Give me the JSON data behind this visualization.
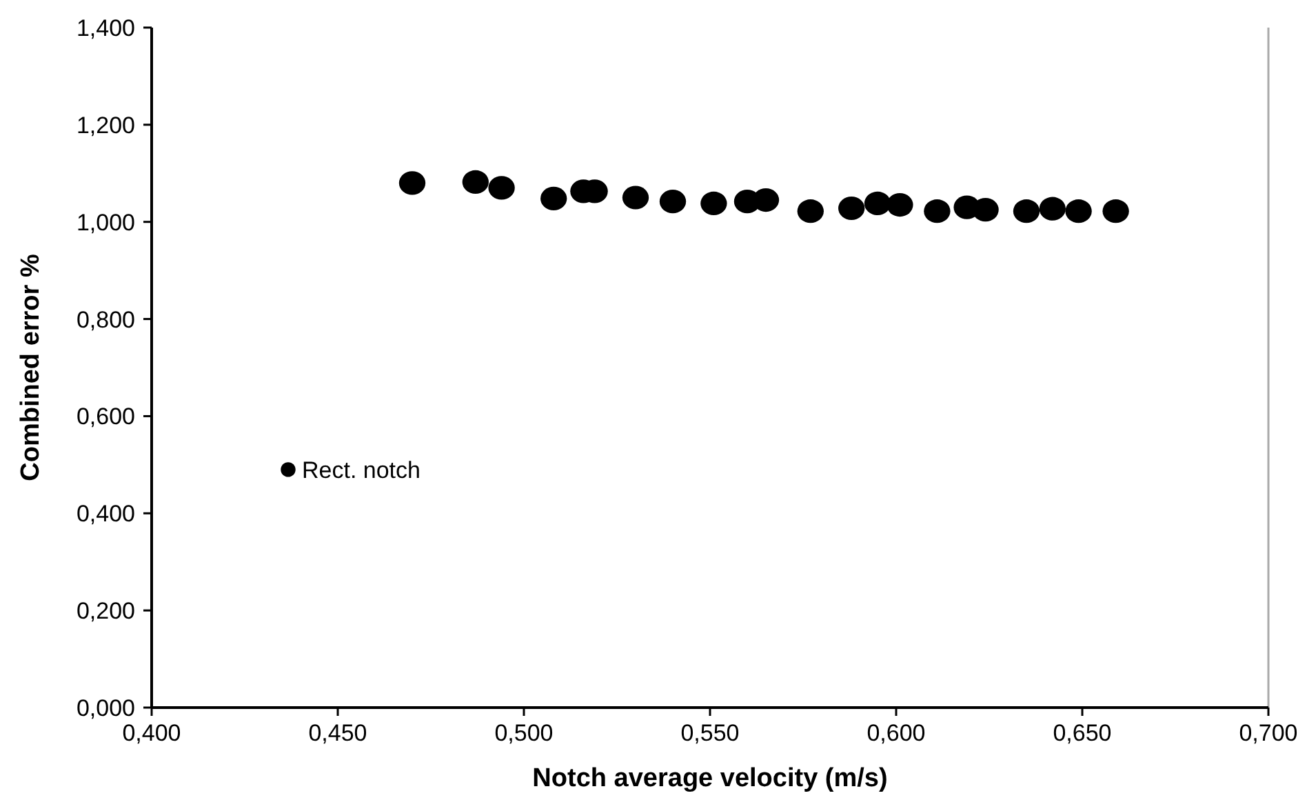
{
  "chart_data": {
    "type": "scatter",
    "xlabel": "Notch average velocity (m/s)",
    "ylabel": "Combined error %",
    "xlim": [
      0.4,
      0.7
    ],
    "ylim": [
      0,
      1.4
    ],
    "xticks": [
      {
        "value": 0.4,
        "label": "0,400"
      },
      {
        "value": 0.45,
        "label": "0,450"
      },
      {
        "value": 0.5,
        "label": "0,500"
      },
      {
        "value": 0.55,
        "label": "0,550"
      },
      {
        "value": 0.6,
        "label": "0,600"
      },
      {
        "value": 0.65,
        "label": "0,650"
      },
      {
        "value": 0.7,
        "label": "0,700"
      }
    ],
    "yticks": [
      {
        "value": 0,
        "label": "0,000"
      },
      {
        "value": 0.2,
        "label": "0,200"
      },
      {
        "value": 0.4,
        "label": "0,400"
      },
      {
        "value": 0.6,
        "label": "0,600"
      },
      {
        "value": 0.8,
        "label": "0,800"
      },
      {
        "value": 1.0,
        "label": "1,000"
      },
      {
        "value": 1.2,
        "label": "1,200"
      },
      {
        "value": 1.4,
        "label": "1,400"
      }
    ],
    "grid": false,
    "legend": "left",
    "marker": "circle",
    "series": [
      {
        "name": "Rect. notch",
        "color": "#000000",
        "x": [
          0.47,
          0.487,
          0.494,
          0.508,
          0.516,
          0.519,
          0.53,
          0.54,
          0.551,
          0.56,
          0.565,
          0.577,
          0.588,
          0.595,
          0.601,
          0.611,
          0.619,
          0.624,
          0.635,
          0.642,
          0.649,
          0.659
        ],
        "values": [
          1.08,
          1.082,
          1.07,
          1.048,
          1.063,
          1.063,
          1.05,
          1.042,
          1.038,
          1.042,
          1.045,
          1.022,
          1.028,
          1.038,
          1.035,
          1.022,
          1.03,
          1.025,
          1.022,
          1.027,
          1.022,
          1.022
        ]
      }
    ]
  }
}
